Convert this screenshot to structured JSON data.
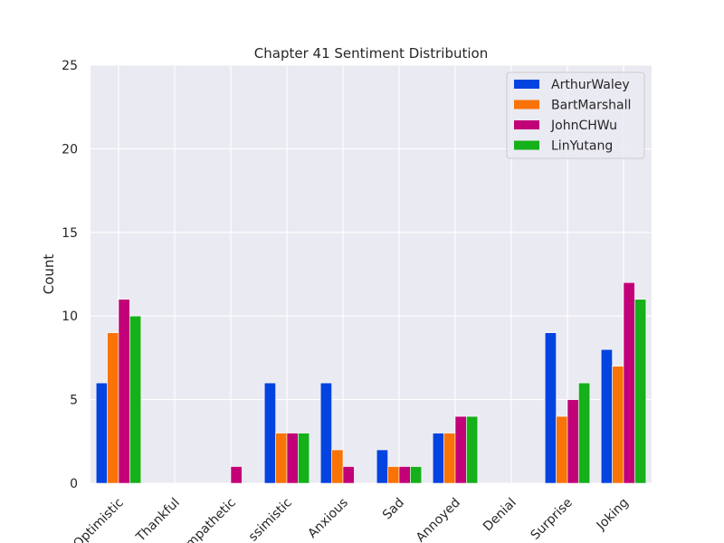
{
  "chart_data": {
    "type": "bar",
    "title": "Chapter 41 Sentiment Distribution",
    "xlabel": "",
    "ylabel": "Count",
    "ylim": [
      0,
      25
    ],
    "yticks": [
      0,
      5,
      10,
      15,
      20,
      25
    ],
    "grid": true,
    "legend_position": "top-right",
    "categories": [
      "Optimistic",
      "Thankful",
      "Empathetic",
      "Pessimistic",
      "Anxious",
      "Sad",
      "Annoyed",
      "Denial",
      "Surprise",
      "Joking"
    ],
    "category_labels_shown": [
      "Optimistic",
      "Thankful",
      "mpathetic",
      "ssimistic",
      "Anxious",
      "Sad",
      "Annoyed",
      "Denial",
      "Surprise",
      "Joking"
    ],
    "series": [
      {
        "name": "ArthurWaley",
        "color": "#0343df",
        "values": [
          6,
          0,
          0,
          6,
          6,
          2,
          3,
          0,
          9,
          8
        ]
      },
      {
        "name": "BartMarshall",
        "color": "#f97306",
        "values": [
          9,
          0,
          0,
          3,
          2,
          1,
          3,
          0,
          4,
          7
        ]
      },
      {
        "name": "JohnCHWu",
        "color": "#c20078",
        "values": [
          11,
          0,
          1,
          3,
          1,
          1,
          4,
          0,
          5,
          12
        ]
      },
      {
        "name": "LinYutang",
        "color": "#15b01a",
        "values": [
          10,
          0,
          0,
          3,
          0,
          1,
          4,
          0,
          6,
          11
        ]
      }
    ]
  },
  "colors": {
    "plot_background": "#eaeaf2",
    "grid": "#ffffff",
    "text": "#262626"
  }
}
